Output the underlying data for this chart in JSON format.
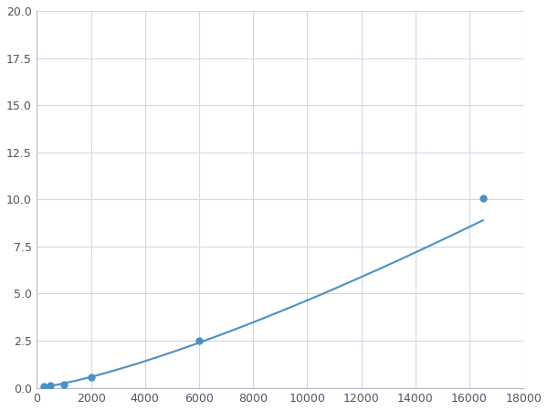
{
  "x": [
    250,
    500,
    1000,
    2000,
    6000,
    16500
  ],
  "y": [
    0.05,
    0.1,
    0.15,
    0.55,
    2.5,
    10.05
  ],
  "line_color": "#4a90c4",
  "marker_color": "#4a90c4",
  "marker_size": 5,
  "xlim": [
    0,
    18000
  ],
  "ylim": [
    0,
    20
  ],
  "xticks": [
    0,
    2000,
    4000,
    6000,
    8000,
    10000,
    12000,
    14000,
    16000,
    18000
  ],
  "yticks": [
    0.0,
    2.5,
    5.0,
    7.5,
    10.0,
    12.5,
    15.0,
    17.5,
    20.0
  ],
  "grid": true,
  "background_color": "#ffffff",
  "grid_color": "#d0d8e8",
  "spine_color": "#b0b8c8"
}
